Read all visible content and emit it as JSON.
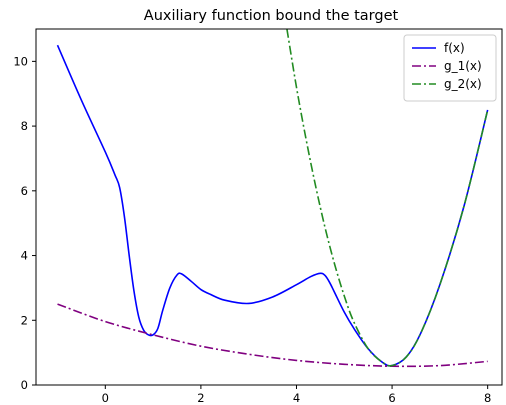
{
  "chart_data": {
    "type": "line",
    "title": "Auxiliary function bound the target",
    "xlabel": "",
    "ylabel": "",
    "xlim": [
      -1.45,
      8.3
    ],
    "ylim": [
      0,
      11
    ],
    "xticks": [
      0,
      2,
      4,
      6,
      8
    ],
    "yticks": [
      0,
      2,
      4,
      6,
      8,
      10
    ],
    "grid": false,
    "legend_position": "top-right",
    "series": [
      {
        "name": "f(x)",
        "color": "#0000ff",
        "style": "solid",
        "x": [
          -1.0,
          -0.5,
          0.0,
          0.2,
          0.3,
          0.4,
          0.5,
          0.6,
          0.7,
          0.8,
          0.9,
          1.0,
          1.1,
          1.2,
          1.35,
          1.5,
          1.6,
          1.8,
          2.0,
          2.2,
          2.5,
          3.0,
          3.5,
          4.0,
          4.3,
          4.5,
          4.6,
          4.7,
          4.8,
          5.0,
          5.2,
          5.5,
          5.8,
          6.0,
          6.3,
          6.6,
          7.0,
          7.5,
          8.0
        ],
        "y": [
          10.5,
          8.8,
          7.2,
          6.5,
          6.1,
          5.2,
          4.0,
          2.9,
          2.1,
          1.7,
          1.55,
          1.55,
          1.75,
          2.3,
          3.0,
          3.4,
          3.43,
          3.2,
          2.95,
          2.8,
          2.62,
          2.52,
          2.72,
          3.1,
          3.35,
          3.45,
          3.38,
          3.15,
          2.85,
          2.25,
          1.75,
          1.12,
          0.7,
          0.6,
          0.87,
          1.6,
          3.1,
          5.5,
          8.5
        ]
      },
      {
        "name": "g_1(x)",
        "color": "#800080",
        "style": "dashdot",
        "x": [
          -1.0,
          0.0,
          1.0,
          2.0,
          3.0,
          4.0,
          5.0,
          6.0,
          7.0,
          8.0
        ],
        "y": [
          2.5,
          1.96,
          1.55,
          1.2,
          0.95,
          0.76,
          0.64,
          0.58,
          0.6,
          0.73
        ]
      },
      {
        "name": "g_2(x)",
        "color": "#228b22",
        "style": "dashdot",
        "x": [
          3.8,
          4.0,
          4.2,
          4.4,
          4.6,
          4.8,
          5.0,
          5.2,
          5.5,
          5.8,
          6.0,
          6.3,
          6.6,
          7.0,
          7.5,
          8.0
        ],
        "y": [
          11.0,
          9.2,
          7.6,
          6.15,
          4.85,
          3.72,
          2.75,
          1.95,
          1.12,
          0.7,
          0.6,
          0.87,
          1.6,
          3.1,
          5.5,
          8.5
        ]
      }
    ]
  }
}
